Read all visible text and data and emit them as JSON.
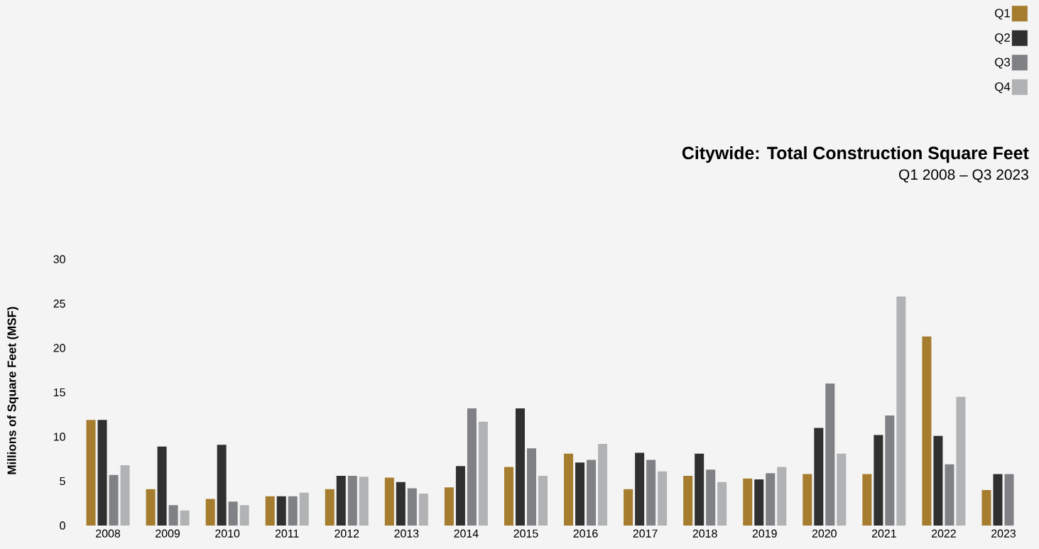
{
  "chart_data": {
    "type": "bar",
    "title": "Citywide: Total Construction Square Feet",
    "subtitle": "Q1 2008 – Q3 2023",
    "ylabel": "Millions of Square Feet (MSF)",
    "categories": [
      "2008",
      "2009",
      "2010",
      "2011",
      "2012",
      "2013",
      "2014",
      "2015",
      "2016",
      "2017",
      "2018",
      "2019",
      "2020",
      "2021",
      "2022",
      "2023"
    ],
    "series": [
      {
        "name": "Q1",
        "color": "#a67c2e",
        "values": [
          11.9,
          4.1,
          3.0,
          3.3,
          4.1,
          5.4,
          4.3,
          6.6,
          8.1,
          4.1,
          5.6,
          5.3,
          5.8,
          5.8,
          21.3,
          4.0
        ]
      },
      {
        "name": "Q2",
        "color": "#303030",
        "values": [
          11.9,
          8.9,
          9.1,
          3.3,
          5.6,
          4.9,
          6.7,
          13.2,
          7.1,
          8.2,
          8.1,
          5.2,
          11.0,
          10.2,
          10.1,
          5.8
        ]
      },
      {
        "name": "Q3",
        "color": "#808184",
        "values": [
          5.7,
          2.3,
          2.7,
          3.3,
          5.6,
          4.2,
          13.2,
          8.7,
          7.4,
          7.4,
          6.3,
          5.9,
          16.0,
          12.4,
          6.9,
          5.8
        ]
      },
      {
        "name": "Q4",
        "color": "#b0b2b4",
        "values": [
          6.8,
          1.7,
          2.3,
          3.7,
          5.5,
          3.6,
          11.7,
          5.6,
          9.2,
          6.1,
          4.9,
          6.6,
          8.1,
          25.8,
          14.5,
          null
        ]
      }
    ],
    "ylim": [
      0,
      30
    ],
    "yticks": [
      0,
      5,
      10,
      15,
      20,
      25,
      30
    ],
    "grid": false,
    "legend": "top right"
  }
}
